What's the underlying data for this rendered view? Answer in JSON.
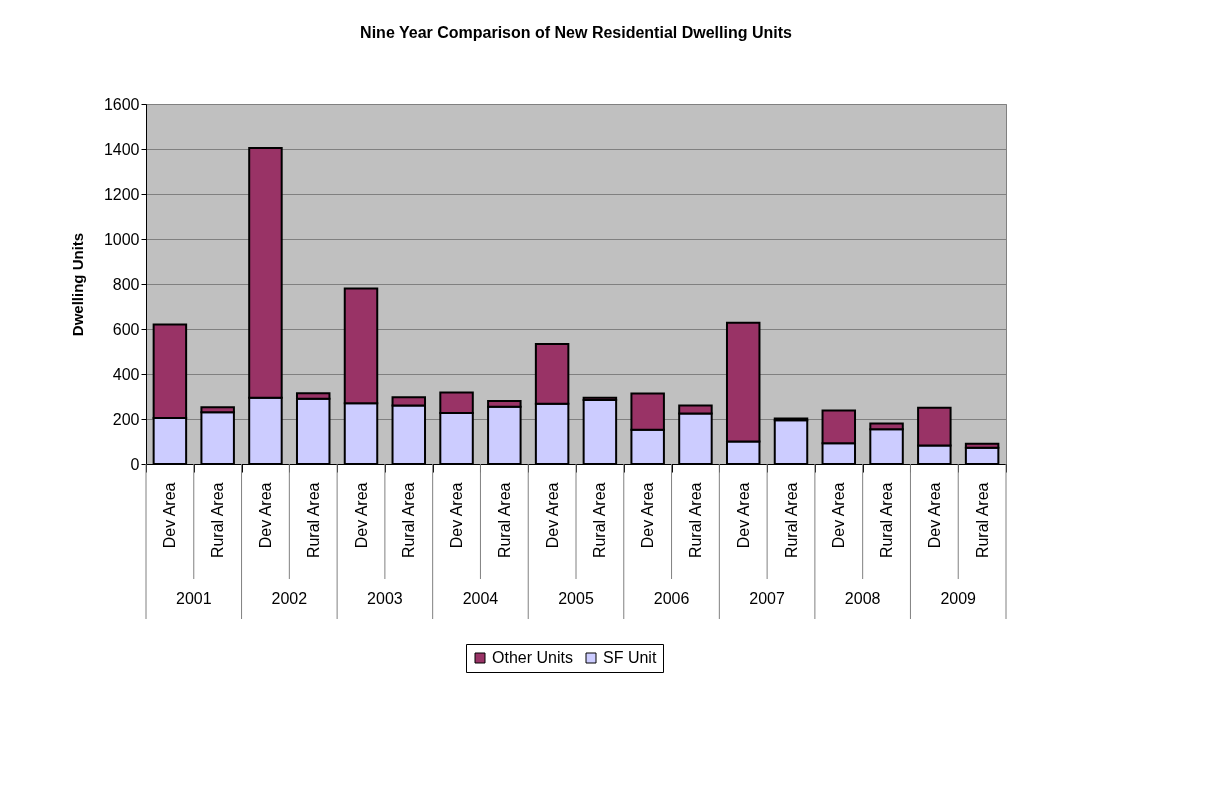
{
  "chart_data": {
    "type": "bar",
    "stacked": true,
    "title": "Nine Year Comparison of New Residential Dwelling Units",
    "ylabel": "Dwelling Units",
    "categories": [
      "Dev Area",
      "Rural Area",
      "Dev Area",
      "Rural Area",
      "Dev Area",
      "Rural Area",
      "Dev Area",
      "Rural Area",
      "Dev Area",
      "Rural Area",
      "Dev Area",
      "Rural Area",
      "Dev Area",
      "Rural Area",
      "Dev Area",
      "Rural Area",
      "Dev Area",
      "Rural Area"
    ],
    "annotations": [
      "2001",
      "2002",
      "2003",
      "2004",
      "2005",
      "2006",
      "2007",
      "2008",
      "2009"
    ],
    "series": [
      {
        "name": "SF Unit",
        "color": "#ccccff",
        "values": [
          205,
          230,
          295,
          290,
          270,
          260,
          227,
          255,
          268,
          285,
          152,
          225,
          100,
          195,
          92,
          155,
          82,
          72
        ]
      },
      {
        "name": "Other Units",
        "color": "#993366",
        "values": [
          415,
          22,
          1110,
          25,
          510,
          37,
          91,
          25,
          265,
          10,
          161,
          35,
          528,
          7,
          146,
          25,
          168,
          18
        ]
      }
    ],
    "ylim": [
      0,
      1600
    ],
    "yticks": [
      0,
      200,
      400,
      600,
      800,
      {
        "value": 1000,
        "label": "1000"
      },
      {
        "value": 1200,
        "label": "1200"
      },
      {
        "value": 1400,
        "label": "1400"
      },
      {
        "value": 1600,
        "label": "1600"
      }
    ],
    "grid": "y",
    "legend": "bottom"
  }
}
